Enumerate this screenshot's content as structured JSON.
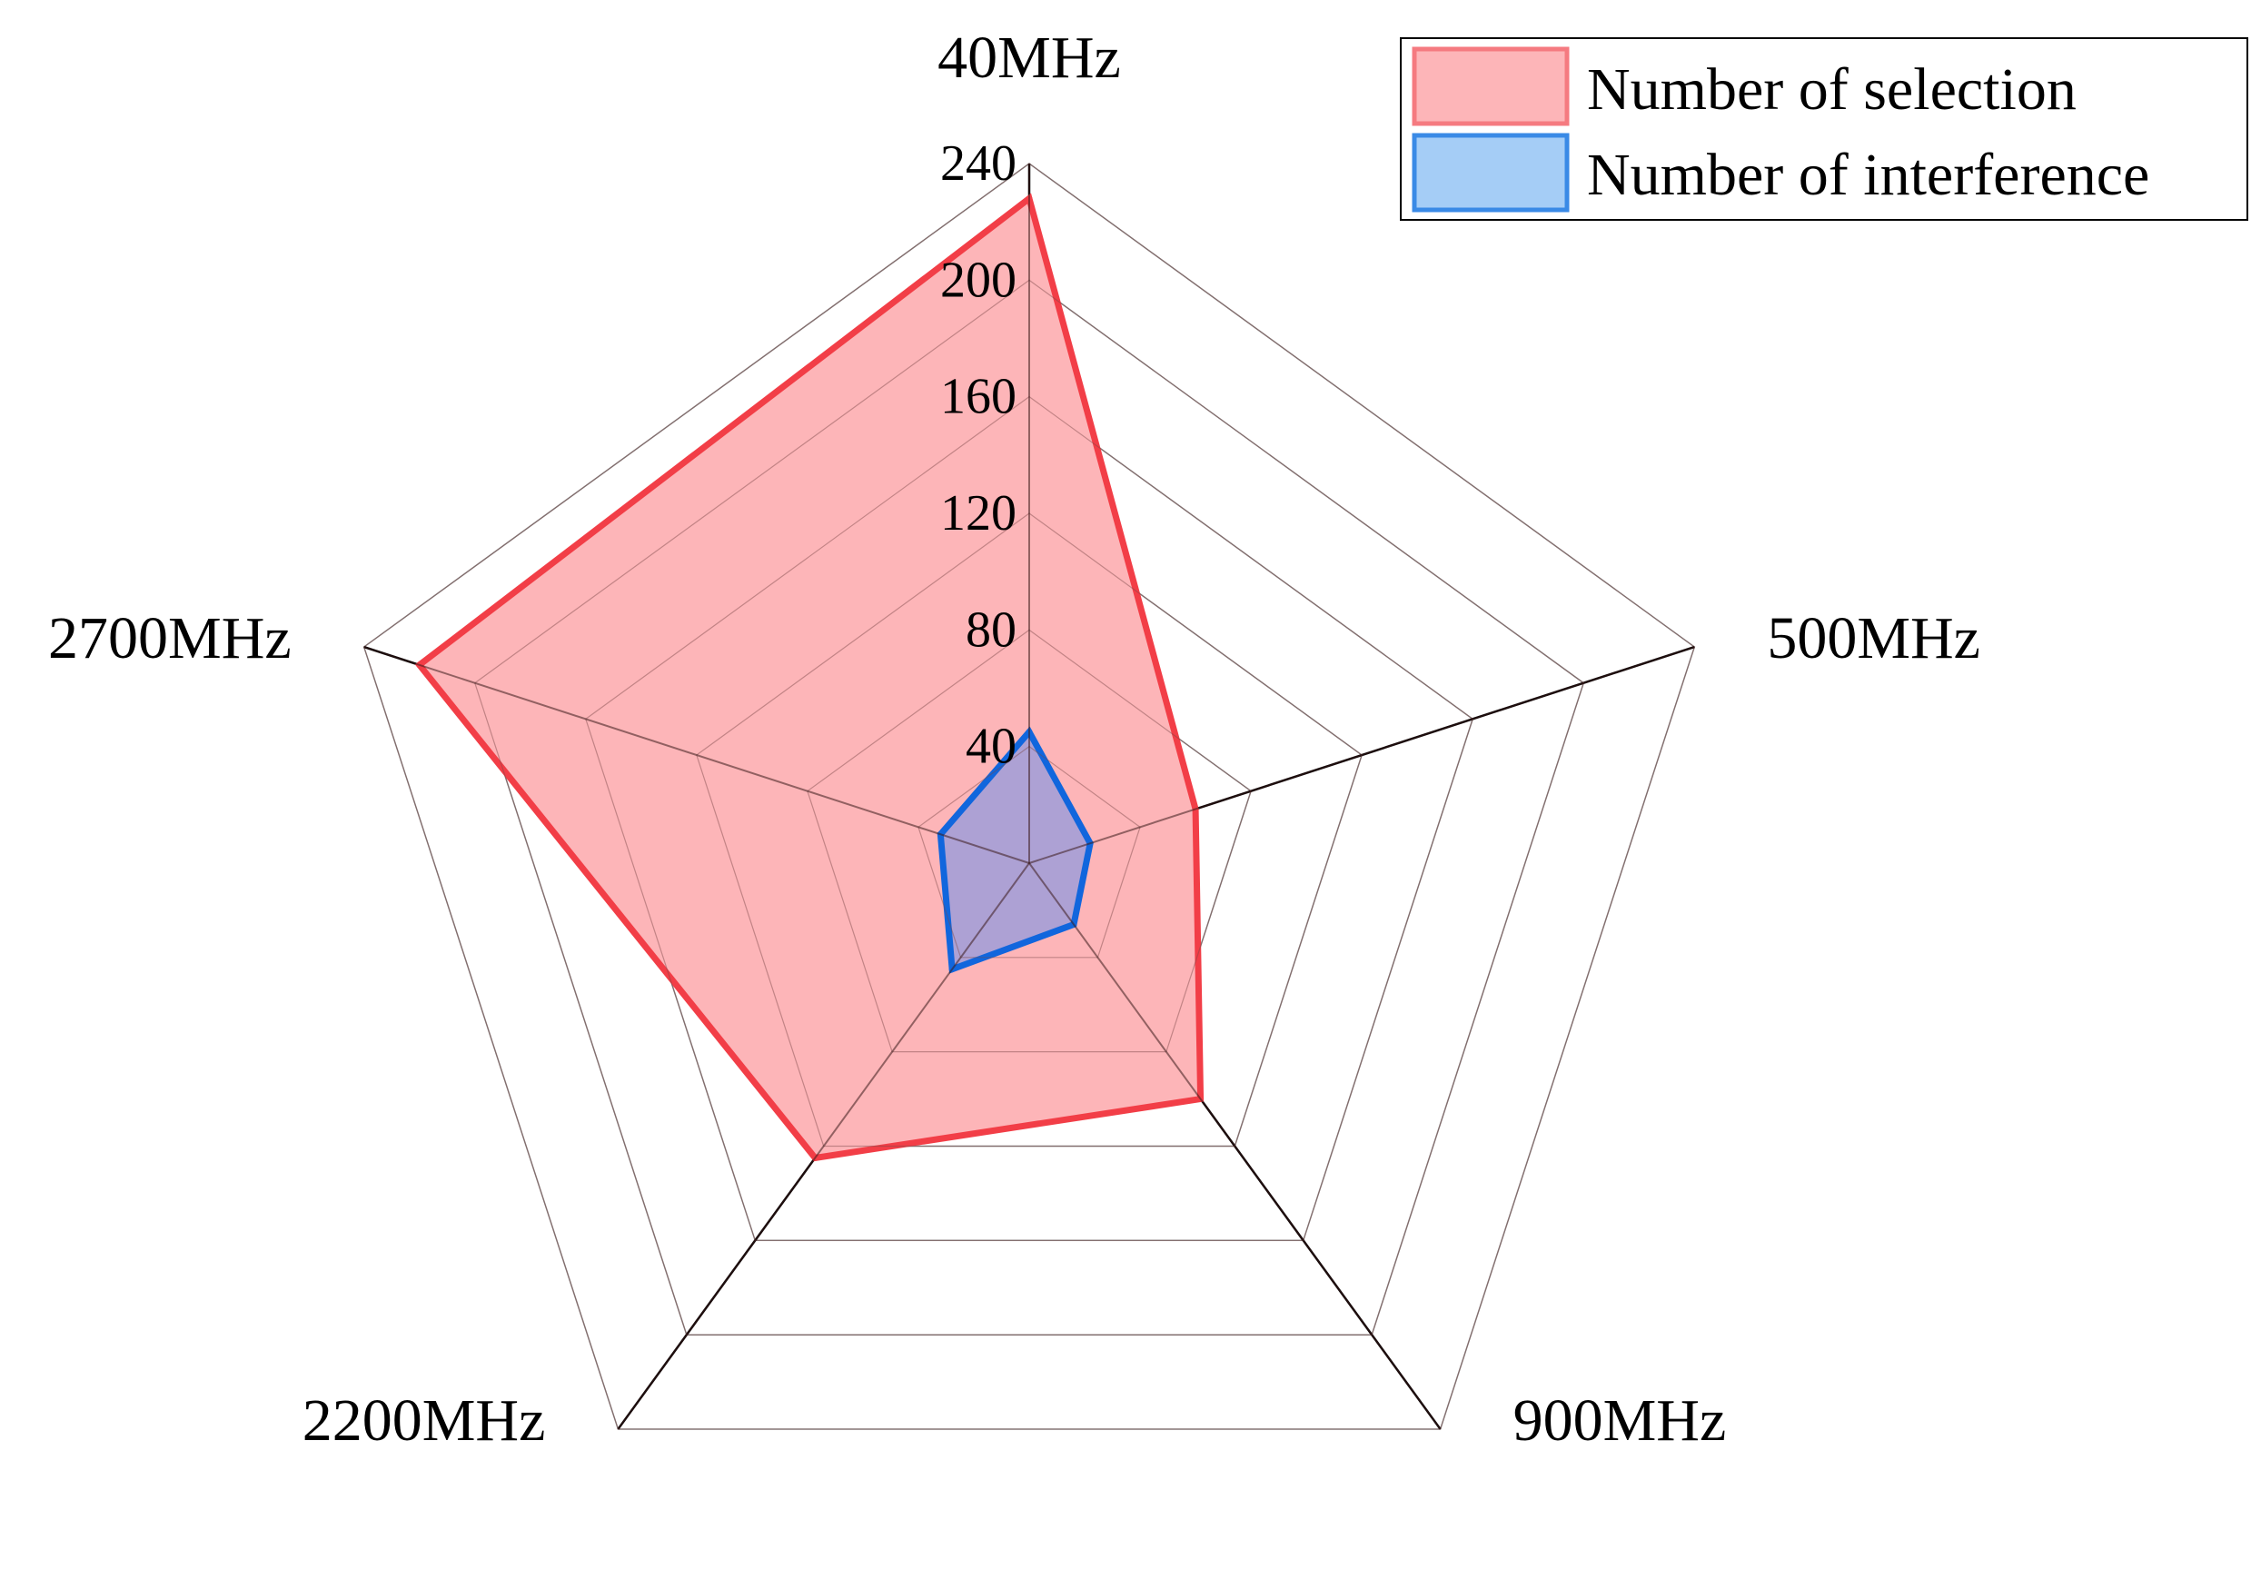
{
  "chart_data": {
    "type": "radar",
    "categories": [
      "40MHz",
      "500MHz",
      "900MHz",
      "2200MHz",
      "2700MHz"
    ],
    "radial_ticks": [
      40,
      80,
      120,
      160,
      200,
      240
    ],
    "rlim": [
      0,
      240
    ],
    "grid": true,
    "legend_position": "top-right",
    "series": [
      {
        "name": "Number of selection",
        "values": [
          228,
          60,
          100,
          125,
          220
        ],
        "color": "#f23e47",
        "fill": "#fdb5b8"
      },
      {
        "name": "Number of interference",
        "values": [
          45,
          22,
          26,
          45,
          32
        ],
        "color": "#1166dd",
        "fill": "#9f9ed8"
      }
    ]
  }
}
